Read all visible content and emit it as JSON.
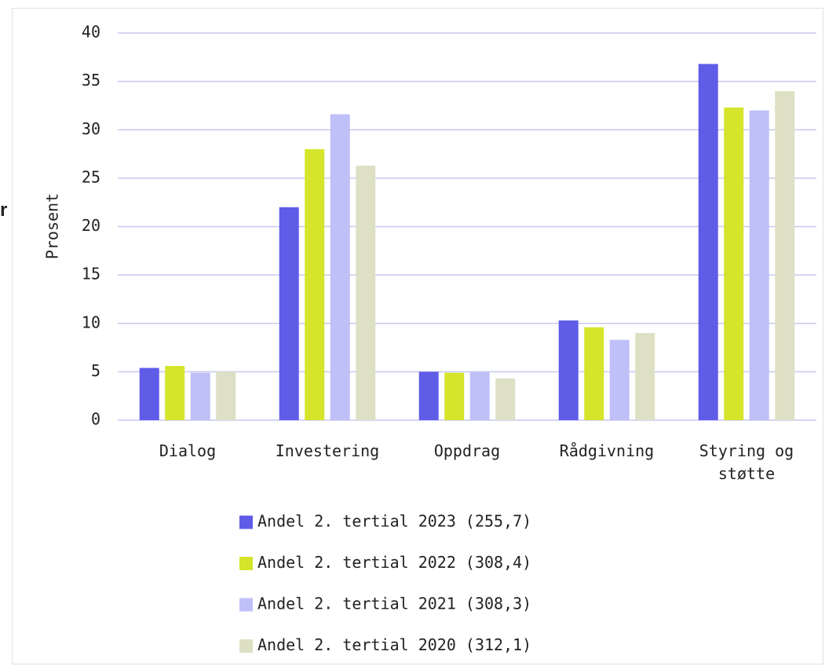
{
  "side_text": "r",
  "chart_data": {
    "type": "bar",
    "y_label": "Prosent",
    "categories": [
      "Dialog",
      "Investering",
      "Oppdrag",
      "Rådgivning",
      "Styring og støtte"
    ],
    "series": [
      {
        "name": "Andel 2. tertial 2023 (255,7)",
        "color": "#5f5ce8",
        "values": [
          5.4,
          22.0,
          5.0,
          10.3,
          36.8
        ]
      },
      {
        "name": "Andel 2. tertial 2022 (308,4)",
        "color": "#d4e52b",
        "values": [
          5.6,
          28.0,
          4.9,
          9.6,
          32.3
        ]
      },
      {
        "name": "Andel 2. tertial 2021 (308,3)",
        "color": "#bfc0f8",
        "values": [
          4.9,
          31.6,
          5.0,
          8.3,
          32.0
        ]
      },
      {
        "name": "Andel 2. tertial 2020 (312,1)",
        "color": "#dde0c4",
        "values": [
          5.0,
          26.3,
          4.3,
          9.0,
          34.0
        ]
      }
    ],
    "ylim": [
      0,
      40
    ],
    "yticks": [
      0,
      5,
      10,
      15,
      20,
      25,
      30,
      35,
      40
    ],
    "grid": true,
    "legend": "bottom"
  }
}
